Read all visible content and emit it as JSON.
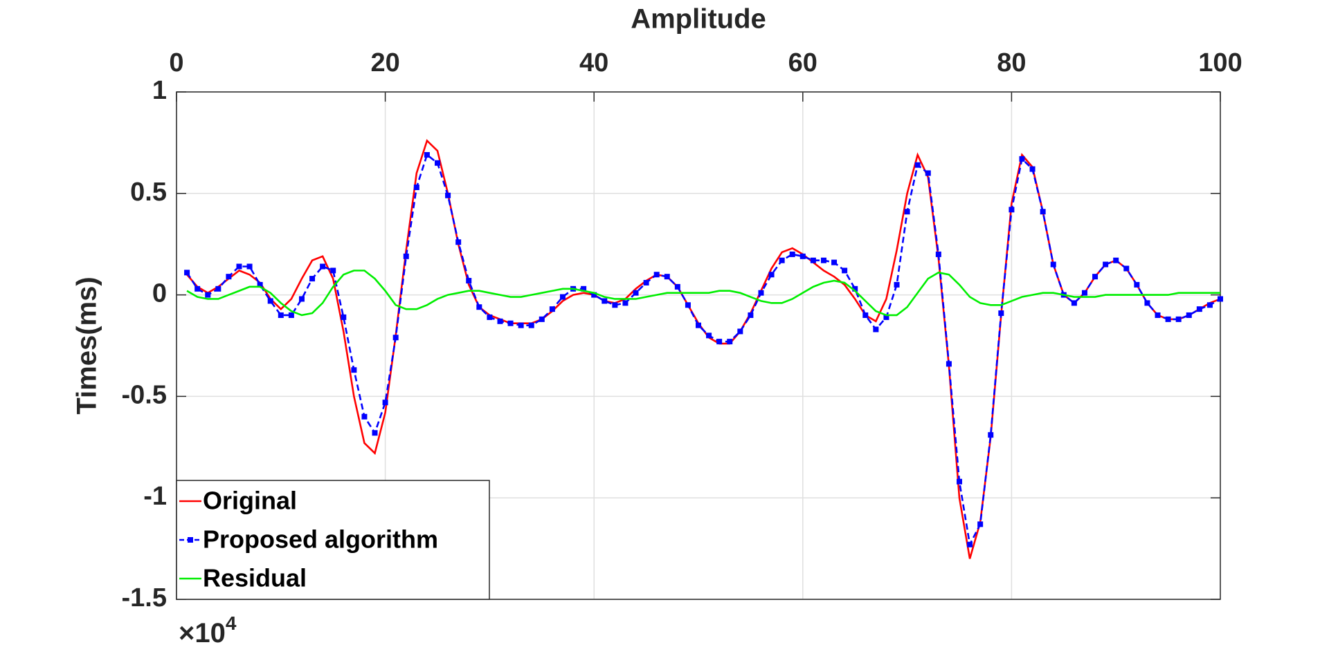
{
  "chart_data": {
    "type": "line",
    "x_label": "Amplitude",
    "y_label": "Times(ms)",
    "x_scale_label": "×10",
    "x_scale_exponent": "4",
    "x": [
      1,
      2,
      3,
      4,
      5,
      6,
      7,
      8,
      9,
      10,
      11,
      12,
      13,
      14,
      15,
      16,
      17,
      18,
      19,
      20,
      21,
      22,
      23,
      24,
      25,
      26,
      27,
      28,
      29,
      30,
      31,
      32,
      33,
      34,
      35,
      36,
      37,
      38,
      39,
      40,
      41,
      42,
      43,
      44,
      45,
      46,
      47,
      48,
      49,
      50,
      51,
      52,
      53,
      54,
      55,
      56,
      57,
      58,
      59,
      60,
      61,
      62,
      63,
      64,
      65,
      66,
      67,
      68,
      69,
      70,
      71,
      72,
      73,
      74,
      75,
      76,
      77,
      78,
      79,
      80,
      81,
      82,
      83,
      84,
      85,
      86,
      87,
      88,
      89,
      90,
      91,
      92,
      93,
      94,
      95,
      96,
      97,
      98,
      99,
      100
    ],
    "series": [
      {
        "name": "Original",
        "color": "#ff0000",
        "style": "solid",
        "marker": false,
        "values": [
          0.1,
          0.04,
          0.01,
          0.04,
          0.08,
          0.12,
          0.1,
          0.06,
          -0.02,
          -0.07,
          -0.02,
          0.08,
          0.17,
          0.19,
          0.08,
          -0.18,
          -0.5,
          -0.73,
          -0.78,
          -0.58,
          -0.2,
          0.22,
          0.6,
          0.76,
          0.71,
          0.5,
          0.25,
          0.05,
          -0.06,
          -0.1,
          -0.12,
          -0.14,
          -0.14,
          -0.14,
          -0.12,
          -0.08,
          -0.03,
          0.0,
          0.01,
          0.0,
          -0.03,
          -0.04,
          -0.02,
          0.03,
          0.07,
          0.1,
          0.09,
          0.04,
          -0.05,
          -0.14,
          -0.21,
          -0.24,
          -0.24,
          -0.18,
          -0.09,
          0.02,
          0.13,
          0.21,
          0.23,
          0.2,
          0.16,
          0.12,
          0.09,
          0.05,
          -0.02,
          -0.1,
          -0.13,
          -0.02,
          0.22,
          0.5,
          0.69,
          0.58,
          0.18,
          -0.35,
          -1.0,
          -1.3,
          -1.12,
          -0.7,
          -0.1,
          0.45,
          0.69,
          0.63,
          0.41,
          0.15,
          0.0,
          -0.04,
          0.01,
          0.09,
          0.15,
          0.17,
          0.13,
          0.05,
          -0.04,
          -0.1,
          -0.12,
          -0.12,
          -0.1,
          -0.07,
          -0.04,
          -0.02
        ]
      },
      {
        "name": "Proposed algorithm",
        "color": "#0000ff",
        "style": "dashed",
        "marker": true,
        "values": [
          0.11,
          0.03,
          0.0,
          0.03,
          0.09,
          0.14,
          0.14,
          0.05,
          -0.03,
          -0.1,
          -0.1,
          -0.02,
          0.08,
          0.14,
          0.12,
          -0.11,
          -0.37,
          -0.6,
          -0.68,
          -0.53,
          -0.21,
          0.19,
          0.53,
          0.69,
          0.65,
          0.49,
          0.26,
          0.07,
          -0.06,
          -0.11,
          -0.13,
          -0.14,
          -0.15,
          -0.15,
          -0.12,
          -0.07,
          -0.01,
          0.03,
          0.03,
          0.0,
          -0.03,
          -0.05,
          -0.04,
          0.01,
          0.06,
          0.1,
          0.09,
          0.04,
          -0.05,
          -0.15,
          -0.2,
          -0.23,
          -0.23,
          -0.18,
          -0.1,
          0.01,
          0.1,
          0.17,
          0.2,
          0.19,
          0.17,
          0.17,
          0.16,
          0.12,
          0.03,
          -0.1,
          -0.17,
          -0.11,
          0.05,
          0.41,
          0.64,
          0.6,
          0.2,
          -0.34,
          -0.92,
          -1.23,
          -1.13,
          -0.69,
          -0.09,
          0.42,
          0.67,
          0.62,
          0.41,
          0.15,
          0.0,
          -0.04,
          0.01,
          0.09,
          0.15,
          0.17,
          0.13,
          0.05,
          -0.04,
          -0.1,
          -0.12,
          -0.12,
          -0.1,
          -0.07,
          -0.05,
          -0.02
        ]
      },
      {
        "name": "Residual",
        "color": "#00ee00",
        "style": "solid",
        "marker": false,
        "values": [
          0.02,
          -0.01,
          -0.02,
          -0.02,
          0.0,
          0.02,
          0.04,
          0.04,
          0.01,
          -0.04,
          -0.08,
          -0.1,
          -0.09,
          -0.04,
          0.04,
          0.1,
          0.12,
          0.12,
          0.08,
          0.02,
          -0.05,
          -0.07,
          -0.07,
          -0.05,
          -0.02,
          0.0,
          0.01,
          0.02,
          0.02,
          0.01,
          0.0,
          -0.01,
          -0.01,
          0.0,
          0.01,
          0.02,
          0.03,
          0.03,
          0.02,
          0.01,
          -0.01,
          -0.02,
          -0.02,
          -0.02,
          -0.01,
          0.0,
          0.01,
          0.01,
          0.01,
          0.01,
          0.01,
          0.02,
          0.02,
          0.01,
          -0.01,
          -0.03,
          -0.04,
          -0.04,
          -0.02,
          0.01,
          0.04,
          0.06,
          0.07,
          0.06,
          0.02,
          -0.03,
          -0.08,
          -0.1,
          -0.1,
          -0.06,
          0.01,
          0.08,
          0.11,
          0.1,
          0.05,
          -0.01,
          -0.04,
          -0.05,
          -0.05,
          -0.03,
          -0.01,
          0.0,
          0.01,
          0.01,
          0.0,
          -0.01,
          -0.01,
          -0.01,
          0.0,
          0.0,
          0.0,
          0.0,
          0.0,
          0.0,
          0.0,
          0.01,
          0.01,
          0.01,
          0.01,
          0.01
        ]
      }
    ],
    "xlim": [
      0,
      100
    ],
    "xticks": [
      0,
      20,
      40,
      60,
      80,
      100
    ],
    "ylim": [
      -1.5,
      1
    ],
    "yticks": [
      -1.5,
      -1,
      -0.5,
      0,
      0.5,
      1
    ],
    "grid": true,
    "x_axis_position": "top",
    "legend": "lower left"
  }
}
